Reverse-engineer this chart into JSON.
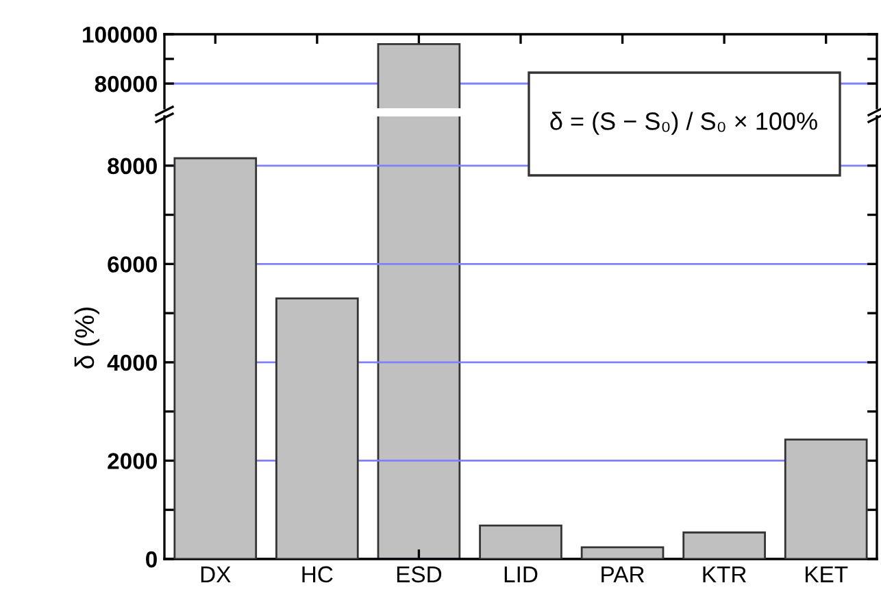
{
  "chart_data": [
    {
      "type": "bar",
      "values": [
        null,
        null,
        96000,
        null,
        null,
        null,
        null
      ],
      "color": "#c0c0c0",
      "ylim": [
        70000,
        100000
      ],
      "yticks": [
        80000,
        {
          "value": 90000,
          "label": null
        },
        100000
      ],
      "ref_lines": [
        {
          "axis": "y",
          "value": 80000,
          "color": "#8080ff"
        }
      ],
      "tick_labels": "y"
    },
    {
      "type": "bar",
      "categories": [
        "DX",
        "HC",
        "ESD",
        "LID",
        "PAR",
        "KTR",
        "KET"
      ],
      "values": [
        8150,
        5300,
        null,
        680,
        240,
        540,
        2430
      ],
      "color": "#c0c0c0",
      "ylim": [
        0,
        9000
      ],
      "yticks": [
        0,
        {
          "value": 1000,
          "label": null
        },
        2000,
        {
          "value": 3000,
          "label": null
        },
        4000,
        {
          "value": 5000,
          "label": null
        },
        6000,
        {
          "value": 7000,
          "label": null
        },
        8000
      ],
      "grid": "y",
      "ylabel": "δ (%)",
      "annotations": [
        "δ = (S − S₀) / S₀ × 100%"
      ]
    }
  ]
}
